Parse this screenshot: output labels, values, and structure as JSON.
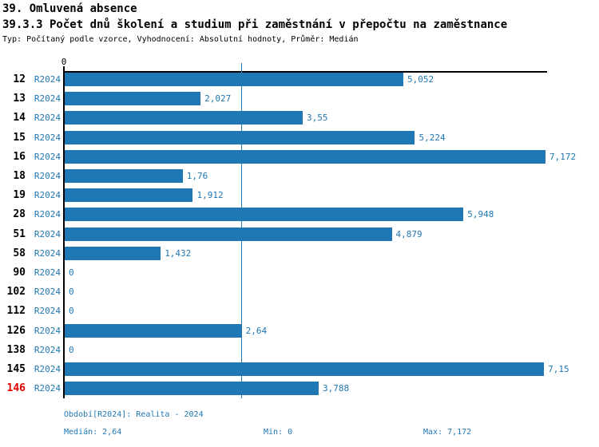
{
  "header": {
    "title1": "39. Omluvená absence",
    "title2": "39.3.3 Počet dnů školení a studium při zaměstnání v přepočtu na zaměstnance",
    "subtitle": "Typ: Počítaný podle vzorce, Vyhodnocení: Absolutní hodnoty, Průměr: Medián"
  },
  "colors": {
    "bar_blue": "#1f77b4",
    "text_blue": "#1f77b4",
    "highlight_red": "#e00000",
    "axis_black": "#000000"
  },
  "chart_data": {
    "type": "bar",
    "orientation": "horizontal",
    "series_label": "R2024",
    "categories": [
      "12",
      "13",
      "14",
      "15",
      "16",
      "18",
      "19",
      "28",
      "51",
      "58",
      "90",
      "102",
      "112",
      "126",
      "138",
      "145",
      "146"
    ],
    "values": [
      5.052,
      2.027,
      3.55,
      5.224,
      7.172,
      1.76,
      1.912,
      5.948,
      4.879,
      1.432,
      0,
      0,
      0,
      2.64,
      0,
      7.15,
      3.788
    ],
    "value_labels": [
      "5,052",
      "2,027",
      "3,55",
      "5,224",
      "7,172",
      "1,76",
      "1,912",
      "5,948",
      "4,879",
      "1,432",
      "0",
      "0",
      "0",
      "2,64",
      "0",
      "7,15",
      "3,788"
    ],
    "highlighted_category": "146",
    "xlim": [
      0,
      7.172
    ],
    "median_line": 2.64,
    "axis_tick_labels": [
      "0"
    ],
    "grid": false,
    "legend": false
  },
  "footer": {
    "period": "Období[R2024]: Realita - 2024",
    "median": "Medián: 2,64",
    "min": "Min: 0",
    "max": "Max: 7,172"
  }
}
